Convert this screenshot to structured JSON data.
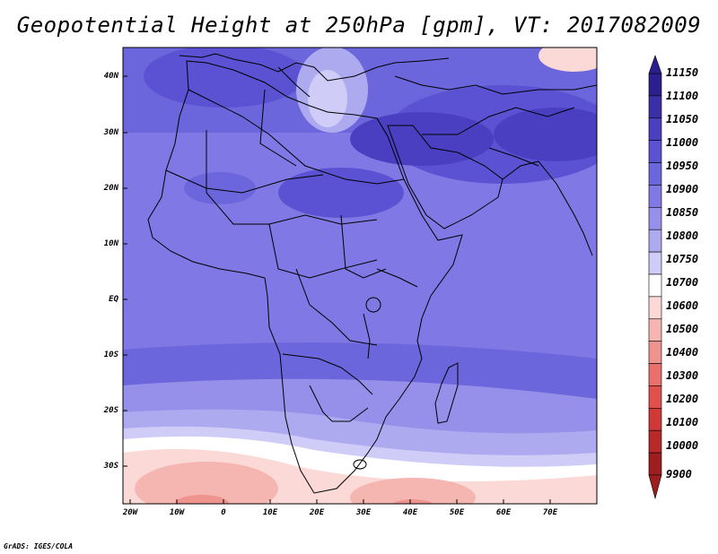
{
  "title": "Geopotential Height at 250hPa [gpm], VT: 2017082009",
  "credit": "GrADS: IGES/COLA",
  "axes": {
    "lat_labels": [
      "40N",
      "30N",
      "20N",
      "10N",
      "EQ",
      "10S",
      "20S",
      "30S"
    ],
    "lon_labels": [
      "20W",
      "10W",
      "0",
      "10E",
      "20E",
      "30E",
      "40E",
      "50E",
      "60E",
      "70E"
    ]
  },
  "colorbar": {
    "labels": [
      "11150",
      "11100",
      "11050",
      "11000",
      "10950",
      "10900",
      "10850",
      "10800",
      "10750",
      "10700",
      "10600",
      "10500",
      "10400",
      "10300",
      "10200",
      "10100",
      "10000",
      "9900"
    ],
    "colors": [
      "#2b1f8f",
      "#3a2fa6",
      "#4a3fc0",
      "#5a52d2",
      "#6c66dc",
      "#8078e4",
      "#9690ea",
      "#aeaaf0",
      "#cfccf7",
      "#ffffff",
      "#fbd9d7",
      "#f5b5b1",
      "#ef938e",
      "#e9706b",
      "#e0504d",
      "#cf3a38",
      "#b82a2a",
      "#9e1d1e"
    ]
  },
  "chart_data": {
    "type": "heatmap",
    "title": "Geopotential Height at 250hPa [gpm], VT: 2017082009",
    "variable": "Geopotential Height",
    "level": "250hPa",
    "units": "gpm",
    "valid_time": "2017082009",
    "lat_ticks": [
      "40N",
      "30N",
      "20N",
      "10N",
      "EQ",
      "10S",
      "20S",
      "30S"
    ],
    "lon_ticks": [
      "20W",
      "10W",
      "0",
      "10E",
      "20E",
      "30E",
      "40E",
      "50E",
      "60E",
      "70E"
    ],
    "contour_levels": [
      9900,
      10000,
      10100,
      10200,
      10300,
      10400,
      10500,
      10600,
      10700,
      10750,
      10800,
      10850,
      10900,
      10950,
      11000,
      11050,
      11100,
      11150
    ]
  }
}
